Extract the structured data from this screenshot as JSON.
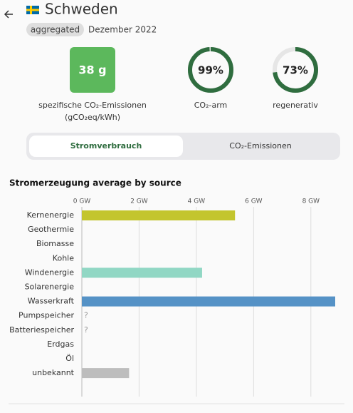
{
  "header": {
    "title": "Schweden",
    "badge": "aggregated",
    "date": "Dezember 2022"
  },
  "metrics": [
    {
      "value": 38,
      "label": "38 g",
      "caption": "spezifische CO₂-Emissionen",
      "unit": "(gCO₂eq/kWh)"
    },
    {
      "value": 99,
      "label": "99%",
      "caption": "CO₂-arm"
    },
    {
      "value": 73,
      "label": "73%",
      "caption": "regenerativ"
    }
  ],
  "tabs": [
    "Stromverbrauch",
    "CO₂-Emissionen"
  ],
  "chart_data": {
    "type": "bar",
    "orientation": "horizontal",
    "title": "Stromerzeugung average by source",
    "categories": [
      "Kernenergie",
      "Geothermie",
      "Biomasse",
      "Kohle",
      "Windenergie",
      "Solarenergie",
      "Wasserkraft",
      "Pumpspeicher",
      "Batteriespeicher",
      "Erdgas",
      "Öl",
      "unbekannt"
    ],
    "values": [
      5.35,
      0,
      0,
      0,
      4.2,
      0,
      8.85,
      null,
      null,
      0,
      0,
      1.65
    ],
    "value_labels": [
      null,
      null,
      null,
      null,
      null,
      null,
      null,
      "?",
      "?",
      null,
      null,
      null
    ],
    "colors": [
      "#c3c52e",
      null,
      null,
      null,
      "#91d7c4",
      null,
      "#5592c6",
      null,
      null,
      null,
      null,
      "#bdbdbd"
    ],
    "xlim": [
      0,
      8.85
    ],
    "xticks": [
      {
        "value": 0,
        "label": "0 GW"
      },
      {
        "value": 2,
        "label": "2 GW"
      },
      {
        "value": 4,
        "label": "4 GW"
      },
      {
        "value": 6,
        "label": "6 GW"
      },
      {
        "value": 8,
        "label": "8 GW"
      }
    ],
    "grid": true
  }
}
